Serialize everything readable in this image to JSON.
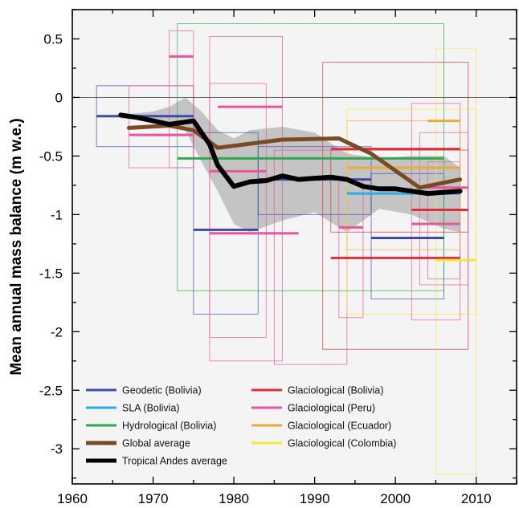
{
  "chart_data": {
    "type": "line",
    "ylabel": "Mean annual mass balance (m w.e.)",
    "xlabel": "",
    "xlim": [
      1960,
      2015
    ],
    "ylim": [
      -3.3,
      0.75
    ],
    "x_ticks": [
      1960,
      1970,
      1980,
      1990,
      2000,
      2010
    ],
    "y_ticks": [
      0.5,
      0,
      -0.5,
      -1,
      -1.5,
      -2,
      -2.5,
      -3
    ],
    "y_tick_labels": [
      "0.5",
      "0",
      "-0.5",
      "-1",
      "-1.5",
      "-2",
      "-2.5",
      "-3"
    ],
    "grid": false,
    "legend_position": "bottom-left",
    "colors": {
      "geodetic_bolivia": "#3d4aa8",
      "sla_bolivia": "#29aee6",
      "hydrological_bolivia": "#2fa84f",
      "global_average": "#7a4a22",
      "tropical_andes_average": "#000000",
      "glaciological_bolivia": "#d8323c",
      "glaciological_peru": "#e8559a",
      "glaciological_ecuador": "#ecaa3a",
      "glaciological_colombia": "#f5e83a",
      "envelope": "#c4c4c4",
      "plot_background": "#f4f4f4"
    },
    "envelope": {
      "x": [
        1966,
        1970,
        1972,
        1974,
        1976,
        1978,
        1980,
        1982,
        1986,
        1990,
        1994,
        1998,
        2002,
        2006,
        2008,
        2008,
        2006,
        2002,
        1998,
        1996,
        1994,
        1990,
        1986,
        1982,
        1980,
        1978,
        1976,
        1974,
        1972,
        1970,
        1966
      ],
      "y": [
        -0.15,
        -0.12,
        -0.08,
        0.0,
        -0.12,
        -0.28,
        -0.35,
        -0.28,
        -0.25,
        -0.3,
        -0.48,
        -0.52,
        -0.5,
        -0.5,
        -0.6,
        -1.15,
        -1.12,
        -1.0,
        -0.95,
        -1.05,
        -1.15,
        -0.98,
        -1.05,
        -1.15,
        -1.08,
        -0.8,
        -0.55,
        -0.28,
        -0.25,
        -0.2,
        -0.18
      ]
    },
    "series": [
      {
        "name": "Tropical Andes average",
        "type": "line",
        "x": [
          1966,
          1968,
          1970,
          1972,
          1975,
          1977,
          1978,
          1980,
          1982,
          1984,
          1986,
          1988,
          1990,
          1992,
          1994,
          1996,
          1998,
          2000,
          2002,
          2004,
          2006,
          2008
        ],
        "y": [
          -0.15,
          -0.17,
          -0.2,
          -0.23,
          -0.2,
          -0.4,
          -0.58,
          -0.76,
          -0.72,
          -0.71,
          -0.67,
          -0.7,
          -0.69,
          -0.68,
          -0.7,
          -0.76,
          -0.78,
          -0.78,
          -0.8,
          -0.82,
          -0.81,
          -0.8
        ]
      },
      {
        "name": "Global average",
        "type": "line",
        "x": [
          1967,
          1972,
          1975,
          1978,
          1986,
          1993,
          1997,
          2003,
          2008
        ],
        "y": [
          -0.26,
          -0.24,
          -0.28,
          -0.43,
          -0.36,
          -0.35,
          -0.48,
          -0.77,
          -0.7
        ]
      }
    ],
    "segments": [
      {
        "group": "Geodetic (Bolivia)",
        "x0": 1963,
        "x1": 1975,
        "y": -0.16
      },
      {
        "group": "Geodetic (Bolivia)",
        "x0": 1975,
        "x1": 1983,
        "y": -1.13
      },
      {
        "group": "Geodetic (Bolivia)",
        "x0": 1983,
        "x1": 1997,
        "y": -0.7
      },
      {
        "group": "Geodetic (Bolivia)",
        "x0": 1997,
        "x1": 2006,
        "y": -1.2
      },
      {
        "group": "SLA (Bolivia)",
        "x0": 1994,
        "x1": 2008,
        "y": -0.82
      },
      {
        "group": "Hydrological (Bolivia)",
        "x0": 1973,
        "x1": 2006,
        "y": -0.52
      },
      {
        "group": "Glaciological (Bolivia)",
        "x0": 1992,
        "x1": 2008,
        "y": -0.44
      },
      {
        "group": "Glaciological (Bolivia)",
        "x0": 1992,
        "x1": 2008,
        "y": -1.37
      },
      {
        "group": "Glaciological (Bolivia)",
        "x0": 2002,
        "x1": 2009,
        "y": -0.96
      },
      {
        "group": "Glaciological (Peru)",
        "x0": 1972,
        "x1": 1975,
        "y": 0.35
      },
      {
        "group": "Glaciological (Peru)",
        "x0": 1967,
        "x1": 1975,
        "y": -0.32
      },
      {
        "group": "Glaciological (Peru)",
        "x0": 1977,
        "x1": 1984,
        "y": -0.63
      },
      {
        "group": "Glaciological (Peru)",
        "x0": 1977,
        "x1": 1988,
        "y": -1.16
      },
      {
        "group": "Glaciological (Peru)",
        "x0": 1978,
        "x1": 1986,
        "y": -0.08
      },
      {
        "group": "Glaciological (Peru)",
        "x0": 1993,
        "x1": 1996,
        "y": -1.11
      },
      {
        "group": "Glaciological (Peru)",
        "x0": 2004,
        "x1": 2009,
        "y": -0.77
      },
      {
        "group": "Glaciological (Peru)",
        "x0": 2002,
        "x1": 2008,
        "y": -1.08
      },
      {
        "group": "Glaciological (Ecuador)",
        "x0": 1994,
        "x1": 2008,
        "y": -0.6
      },
      {
        "group": "Glaciological (Ecuador)",
        "x0": 2004,
        "x1": 2008,
        "y": -0.2
      },
      {
        "group": "Glaciological (Colombia)",
        "x0": 2005,
        "x1": 2010,
        "y": -1.39
      }
    ],
    "error_boxes": [
      {
        "group": "Geodetic (Bolivia)",
        "x0": 1963,
        "x1": 1975,
        "y0": -0.42,
        "y1": 0.1
      },
      {
        "group": "Geodetic (Bolivia)",
        "x0": 1975,
        "x1": 1983,
        "y0": -1.85,
        "y1": -0.3
      },
      {
        "group": "Geodetic (Bolivia)",
        "x0": 1983,
        "x1": 1997,
        "y0": -1.0,
        "y1": -0.42
      },
      {
        "group": "Geodetic (Bolivia)",
        "x0": 1997,
        "x1": 2006,
        "y0": -1.72,
        "y1": -0.65
      },
      {
        "group": "Hydrological (Bolivia)",
        "x0": 1973,
        "x1": 2006,
        "y0": -1.65,
        "y1": 0.63
      },
      {
        "group": "Glaciological (Bolivia)",
        "x0": 1991,
        "x1": 2009,
        "y0": -2.15,
        "y1": 0.3
      },
      {
        "group": "Glaciological (Bolivia)",
        "x0": 1992,
        "x1": 2009,
        "y0": -1.15,
        "y1": -0.45
      },
      {
        "group": "Glaciological (Peru)",
        "x0": 1972,
        "x1": 1975,
        "y0": -0.6,
        "y1": 0.57
      },
      {
        "group": "Glaciological (Peru)",
        "x0": 1967,
        "x1": 1975,
        "y0": -0.6,
        "y1": 0.1
      },
      {
        "group": "Glaciological (Peru)",
        "x0": 1977,
        "x1": 1984,
        "y0": -2.05,
        "y1": 0.12
      },
      {
        "group": "Glaciological (Peru)",
        "x0": 1977,
        "x1": 1986,
        "y0": -2.25,
        "y1": 0.52
      },
      {
        "group": "Glaciological (Peru)",
        "x0": 1985,
        "x1": 1994,
        "y0": -2.28,
        "y1": -0.45
      },
      {
        "group": "Glaciological (Peru)",
        "x0": 1993,
        "x1": 1996,
        "y0": -1.88,
        "y1": -0.7
      },
      {
        "group": "Glaciological (Peru)",
        "x0": 2002,
        "x1": 2008,
        "y0": -1.9,
        "y1": -0.05
      },
      {
        "group": "Glaciological (Peru)",
        "x0": 2003,
        "x1": 2009,
        "y0": -1.6,
        "y1": -0.3
      },
      {
        "group": "Glaciological (Peru)",
        "x0": 2004,
        "x1": 2008,
        "y0": -1.55,
        "y1": -0.55
      },
      {
        "group": "Glaciological (Ecuador)",
        "x0": 1994,
        "x1": 2008,
        "y0": -1.3,
        "y1": -0.2
      },
      {
        "group": "Glaciological (Colombia)",
        "x0": 1994,
        "x1": 2010,
        "y0": -1.85,
        "y1": -0.1
      },
      {
        "group": "Glaciological (Colombia)",
        "x0": 2005,
        "x1": 2010,
        "y0": -3.22,
        "y1": 0.42
      }
    ],
    "legend": [
      {
        "label": "Geodetic (Bolivia)",
        "color_key": "geodetic_bolivia",
        "thick": false
      },
      {
        "label": "SLA (Bolivia)",
        "color_key": "sla_bolivia",
        "thick": false
      },
      {
        "label": "Hydrological (Bolivia)",
        "color_key": "hydrological_bolivia",
        "thick": false
      },
      {
        "label": "Global average",
        "color_key": "global_average",
        "thick": true
      },
      {
        "label": "Tropical Andes average",
        "color_key": "tropical_andes_average",
        "thick": true
      },
      {
        "label": "Glaciological (Bolivia)",
        "color_key": "glaciological_bolivia",
        "thick": false
      },
      {
        "label": "Glaciological (Peru)",
        "color_key": "glaciological_peru",
        "thick": false
      },
      {
        "label": "Glaciological (Ecuador)",
        "color_key": "glaciological_ecuador",
        "thick": false
      },
      {
        "label": "Glaciological (Colombia)",
        "color_key": "glaciological_colombia",
        "thick": false
      }
    ]
  }
}
